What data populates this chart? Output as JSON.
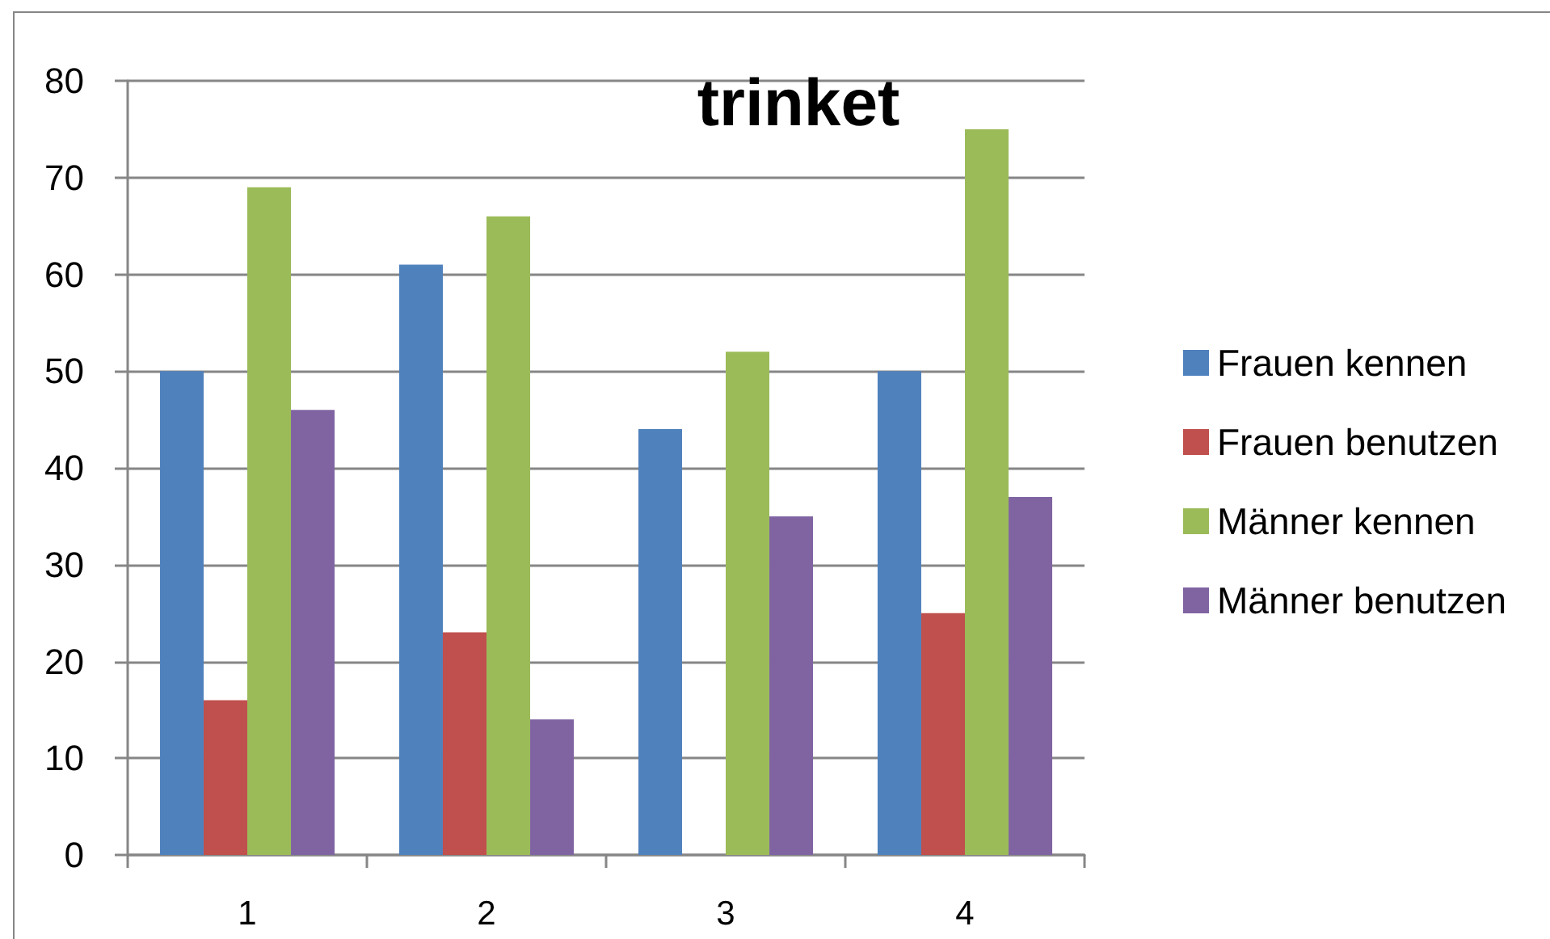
{
  "chart_data": {
    "type": "bar",
    "title": "trinket",
    "categories": [
      "1",
      "2",
      "3",
      "4"
    ],
    "series": [
      {
        "name": "Frauen kennen",
        "color": "#4f81bd",
        "values": [
          50,
          61,
          44,
          50
        ]
      },
      {
        "name": "Frauen benutzen",
        "color": "#c0504d",
        "values": [
          16,
          23,
          0,
          25
        ]
      },
      {
        "name": "Männer kennen",
        "color": "#9bbb59",
        "values": [
          69,
          66,
          52,
          75
        ]
      },
      {
        "name": "Männer benutzen",
        "color": "#8064a2",
        "values": [
          46,
          14,
          35,
          37
        ]
      }
    ],
    "ylim": [
      0,
      80
    ],
    "yticks": [
      0,
      10,
      20,
      30,
      40,
      50,
      60,
      70,
      80
    ],
    "grid": "y",
    "legend": "right"
  }
}
